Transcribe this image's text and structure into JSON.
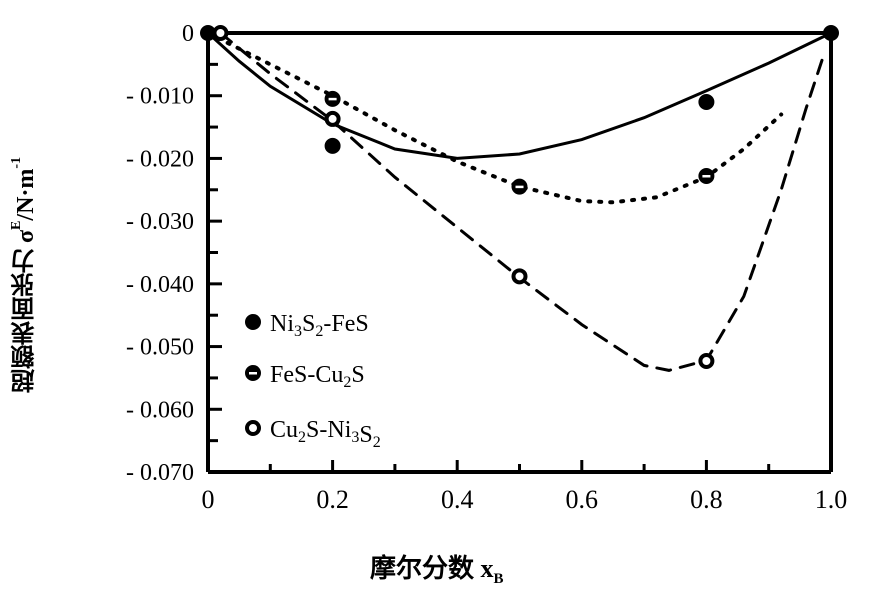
{
  "chart_data": {
    "type": "scatter",
    "title": "",
    "xlabel": "摩尔分数 x",
    "xlabel_sub": "B",
    "ylabel": "超额表面张力 σ",
    "ylabel_sup": "E",
    "ylabel_unit": "/N·m",
    "ylabel_unit_sup": "-1",
    "xlim": [
      0,
      1.0
    ],
    "ylim": [
      -0.07,
      0
    ],
    "x_ticks": [
      "0",
      "0.2",
      "0.4",
      "0.6",
      "0.8",
      "1.0"
    ],
    "y_ticks": [
      "0",
      "- 0.010",
      "- 0.020",
      "- 0.030",
      "- 0.040",
      "- 0.050",
      "- 0.060",
      "- 0.070"
    ],
    "legend_position": "bottom-left",
    "series": [
      {
        "name": "Ni3S2-FeS",
        "marker": "filled-circle",
        "line": "solid",
        "points": [
          [
            0,
            0
          ],
          [
            0.2,
            -0.018
          ],
          [
            0.8,
            -0.011
          ],
          [
            1.0,
            0
          ]
        ],
        "curve": [
          [
            0,
            0
          ],
          [
            0.05,
            -0.0045
          ],
          [
            0.1,
            -0.0085
          ],
          [
            0.2,
            -0.0145
          ],
          [
            0.3,
            -0.0185
          ],
          [
            0.4,
            -0.02
          ],
          [
            0.5,
            -0.0193
          ],
          [
            0.6,
            -0.017
          ],
          [
            0.7,
            -0.0135
          ],
          [
            0.8,
            -0.0092
          ],
          [
            0.9,
            -0.0048
          ],
          [
            1.0,
            0
          ]
        ]
      },
      {
        "name": "FeS-Cu2S",
        "marker": "half-filled-circle",
        "line": "dotted",
        "points": [
          [
            0.2,
            -0.0105
          ],
          [
            0.5,
            -0.0245
          ],
          [
            0.8,
            -0.0228
          ]
        ],
        "curve": [
          [
            0,
            0
          ],
          [
            0.1,
            -0.005
          ],
          [
            0.2,
            -0.01
          ],
          [
            0.3,
            -0.0155
          ],
          [
            0.4,
            -0.0205
          ],
          [
            0.5,
            -0.0245
          ],
          [
            0.6,
            -0.0268
          ],
          [
            0.65,
            -0.027
          ],
          [
            0.72,
            -0.0262
          ],
          [
            0.8,
            -0.023
          ],
          [
            0.86,
            -0.0185
          ],
          [
            0.92,
            -0.013
          ]
        ]
      },
      {
        "name": "Cu2S-Ni3S2",
        "marker": "open-circle",
        "line": "dashed",
        "points": [
          [
            0.02,
            0
          ],
          [
            0.2,
            -0.0137
          ],
          [
            0.5,
            -0.0388
          ],
          [
            0.8,
            -0.0523
          ]
        ],
        "curve": [
          [
            0.02,
            0
          ],
          [
            0.1,
            -0.0065
          ],
          [
            0.2,
            -0.014
          ],
          [
            0.3,
            -0.023
          ],
          [
            0.4,
            -0.031
          ],
          [
            0.5,
            -0.039
          ],
          [
            0.6,
            -0.0465
          ],
          [
            0.7,
            -0.053
          ],
          [
            0.74,
            -0.0538
          ],
          [
            0.8,
            -0.0522
          ],
          [
            0.86,
            -0.042
          ],
          [
            0.92,
            -0.025
          ],
          [
            0.96,
            -0.012
          ],
          [
            0.99,
            -0.003
          ]
        ]
      }
    ],
    "legend": [
      {
        "label": "Ni",
        "parts": [
          "Ni",
          "3",
          "S",
          "2",
          "-FeS"
        ]
      },
      {
        "label": "FeS-Cu2S",
        "parts": [
          "FeS-Cu",
          "2",
          "S",
          "",
          ""
        ]
      },
      {
        "label": "Cu2S-Ni3S2",
        "parts": [
          "Cu",
          "2",
          "S-Ni",
          "3",
          "S2"
        ]
      }
    ]
  }
}
